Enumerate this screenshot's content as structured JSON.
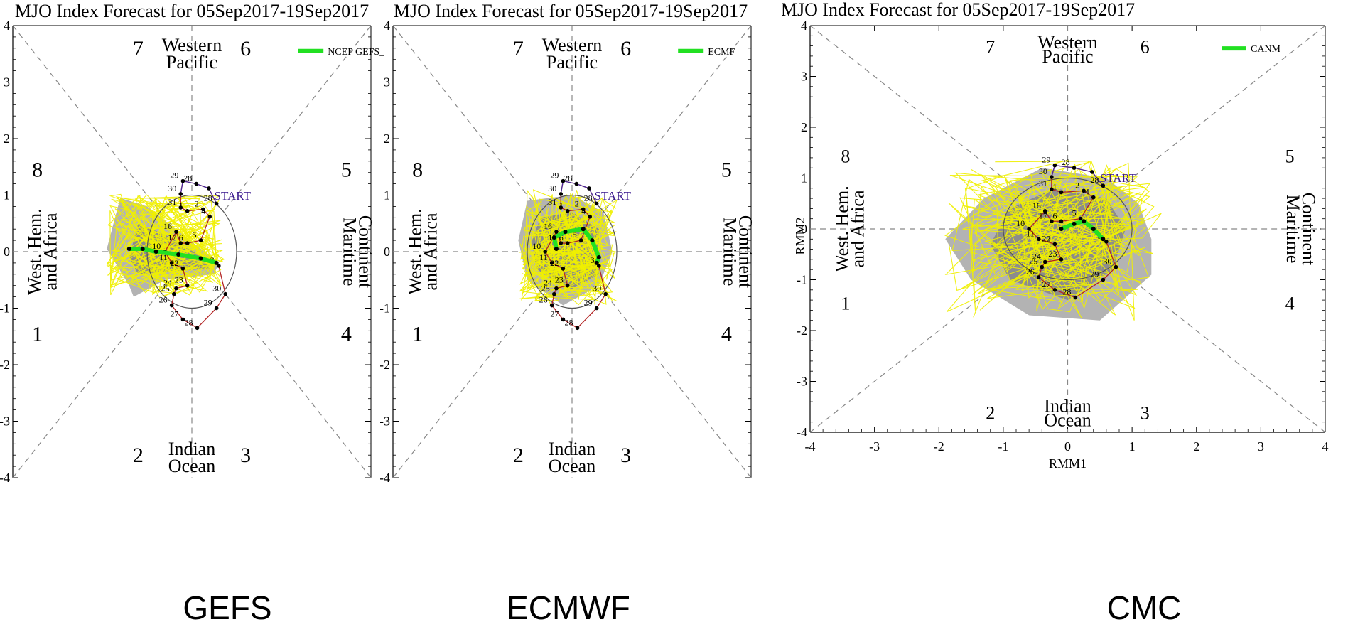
{
  "panels": [
    {
      "title": "MJO Index Forecast for 05Sep2017-19Sep2017",
      "legend": "NCEP GEFS_BC",
      "caption": "GEFS",
      "xlabel": "",
      "ylabel": "",
      "show_x_ticks": false,
      "ens_mean": [
        [
          0.55,
          -0.2
        ],
        [
          0.2,
          -0.12
        ],
        [
          -0.3,
          -0.05
        ],
        [
          -0.8,
          0.0
        ],
        [
          -1.1,
          0.05
        ],
        [
          -1.4,
          0.05
        ]
      ],
      "spread_light": [
        [
          -1.6,
          0.95
        ],
        [
          -1.0,
          0.8
        ],
        [
          -0.2,
          0.3
        ],
        [
          0.6,
          -0.2
        ],
        [
          0.5,
          -0.4
        ],
        [
          -0.6,
          -0.5
        ],
        [
          -1.3,
          -0.8
        ],
        [
          -1.4,
          -0.6
        ],
        [
          -1.9,
          0.05
        ]
      ],
      "spread_dark": [
        [
          -1.2,
          0.5
        ],
        [
          -0.6,
          0.3
        ],
        [
          0.3,
          -0.1
        ],
        [
          0.4,
          -0.3
        ],
        [
          -0.5,
          -0.35
        ],
        [
          -1.2,
          -0.4
        ],
        [
          -1.4,
          -0.1
        ]
      ]
    },
    {
      "title": "MJO Index Forecast for 05Sep2017-19Sep2017",
      "legend": "ECMF",
      "caption": "ECMWF",
      "xlabel": "",
      "ylabel": "",
      "show_x_ticks": false,
      "ens_mean": [
        [
          0.55,
          -0.2
        ],
        [
          0.6,
          -0.1
        ],
        [
          0.45,
          0.2
        ],
        [
          0.25,
          0.4
        ],
        [
          -0.15,
          0.35
        ],
        [
          -0.4,
          0.25
        ],
        [
          -0.35,
          0.05
        ]
      ],
      "spread_light": [
        [
          -1.0,
          0.9
        ],
        [
          0.0,
          1.0
        ],
        [
          0.7,
          0.7
        ],
        [
          0.9,
          0.0
        ],
        [
          0.6,
          -0.6
        ],
        [
          -0.2,
          -0.95
        ],
        [
          -1.0,
          -0.5
        ],
        [
          -1.2,
          0.2
        ]
      ],
      "spread_dark": [
        [
          -0.7,
          0.6
        ],
        [
          0.0,
          0.7
        ],
        [
          0.6,
          0.4
        ],
        [
          0.6,
          -0.4
        ],
        [
          -0.1,
          -0.7
        ],
        [
          -0.8,
          -0.3
        ],
        [
          -0.9,
          0.2
        ]
      ]
    },
    {
      "title": "MJO Index Forecast for 05Sep2017-19Sep2017",
      "legend": "CANM",
      "caption": "CMC",
      "xlabel": "RMM1",
      "ylabel": "RMM2",
      "show_x_ticks": true,
      "ens_mean": [
        [
          0.55,
          -0.2
        ],
        [
          0.4,
          0.0
        ],
        [
          0.25,
          0.15
        ],
        [
          0.1,
          0.1
        ],
        [
          -0.1,
          0.0
        ]
      ],
      "spread_light": [
        [
          -1.3,
          0.6
        ],
        [
          -0.4,
          1.2
        ],
        [
          0.6,
          1.0
        ],
        [
          1.1,
          0.5
        ],
        [
          1.3,
          -0.2
        ],
        [
          1.3,
          -0.9
        ],
        [
          0.5,
          -1.8
        ],
        [
          -0.6,
          -1.7
        ],
        [
          -1.5,
          -1.0
        ],
        [
          -1.9,
          -0.2
        ]
      ],
      "spread_dark": [
        [
          -0.9,
          0.4
        ],
        [
          -0.2,
          0.8
        ],
        [
          0.6,
          0.6
        ],
        [
          0.9,
          0.0
        ],
        [
          0.7,
          -0.8
        ],
        [
          0.0,
          -1.4
        ],
        [
          -0.9,
          -1.0
        ],
        [
          -1.2,
          -0.3
        ]
      ]
    }
  ],
  "observed": {
    "start_label": "START",
    "points": [
      {
        "x": 0.55,
        "y": 0.85,
        "label": "28"
      },
      {
        "x": 0.38,
        "y": 1.12,
        "label": ""
      },
      {
        "x": 0.1,
        "y": 1.2,
        "label": "28"
      },
      {
        "x": -0.2,
        "y": 1.25,
        "label": "29"
      },
      {
        "x": -0.25,
        "y": 1.02,
        "label": "30"
      },
      {
        "x": -0.25,
        "y": 0.78,
        "label": "31"
      },
      {
        "x": -0.1,
        "y": 0.72,
        "label": "1"
      },
      {
        "x": 0.25,
        "y": 0.75,
        "label": "2"
      },
      {
        "x": 0.4,
        "y": 0.62,
        "label": "4"
      },
      {
        "x": 0.2,
        "y": 0.2,
        "label": "5"
      },
      {
        "x": -0.1,
        "y": 0.15,
        "label": "6"
      },
      {
        "x": -0.25,
        "y": 0.15,
        "label": "17"
      },
      {
        "x": -0.35,
        "y": 0.35,
        "label": "16"
      },
      {
        "x": -0.6,
        "y": 0.0,
        "label": "10"
      },
      {
        "x": -0.45,
        "y": -0.2,
        "label": "11"
      },
      {
        "x": -0.2,
        "y": -0.3,
        "label": "22"
      },
      {
        "x": -0.1,
        "y": -0.6,
        "label": "23"
      },
      {
        "x": -0.35,
        "y": -0.65,
        "label": "24"
      },
      {
        "x": -0.4,
        "y": -0.75,
        "label": "25"
      },
      {
        "x": -0.45,
        "y": -0.95,
        "label": "26"
      },
      {
        "x": -0.2,
        "y": -1.2,
        "label": "27"
      },
      {
        "x": 0.12,
        "y": -1.35,
        "label": "28"
      },
      {
        "x": 0.55,
        "y": -1.0,
        "label": "29"
      },
      {
        "x": 0.75,
        "y": -0.75,
        "label": "30"
      },
      {
        "x": 0.6,
        "y": -0.25,
        "label": "3"
      }
    ]
  },
  "phases": {
    "labels": [
      "1",
      "2",
      "3",
      "4",
      "5",
      "6",
      "7",
      "8"
    ],
    "regions": {
      "top": [
        "Western",
        "Pacific"
      ],
      "bottom": [
        "Indian",
        "Ocean"
      ],
      "left": [
        "West. Hem.",
        "and Africa"
      ],
      "right": [
        "Maritime",
        "Continent"
      ]
    }
  },
  "axis": {
    "ticks": [
      "-4",
      "-3",
      "-2",
      "-1",
      "0",
      "1",
      "2",
      "3",
      "4"
    ],
    "range": [
      -4,
      4
    ]
  },
  "colors": {
    "spread_light": "#b3b3b3",
    "spread_dark": "#8c8c8c",
    "members": "#f0f000",
    "ens_mean": "#22e022",
    "observed_line": "#b22222",
    "observed_start": "#4b2d9b",
    "circle": "#555555",
    "dashed": "#888888"
  }
}
